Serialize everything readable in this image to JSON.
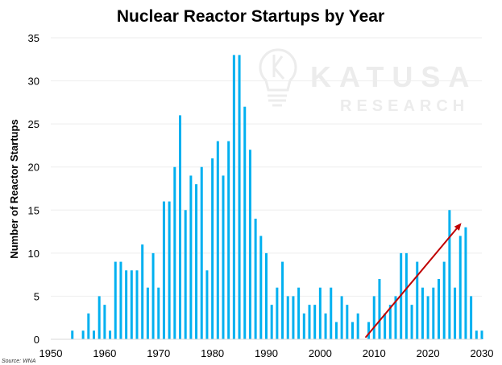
{
  "chart_data": {
    "type": "bar",
    "title": "Nuclear Reactor Startups by Year",
    "xlabel": "",
    "ylabel": "Number of Reactor Startups",
    "xlim": [
      1950,
      2030
    ],
    "ylim": [
      0,
      35
    ],
    "xticks": [
      1950,
      1960,
      1970,
      1980,
      1990,
      2000,
      2010,
      2020,
      2030
    ],
    "yticks": [
      0,
      5,
      10,
      15,
      20,
      25,
      30,
      35
    ],
    "grid": "horizontal",
    "bar_color": "#00B0F0",
    "x": [
      1954,
      1956,
      1957,
      1958,
      1959,
      1960,
      1961,
      1962,
      1963,
      1964,
      1965,
      1966,
      1967,
      1968,
      1969,
      1970,
      1971,
      1972,
      1973,
      1974,
      1975,
      1976,
      1977,
      1978,
      1979,
      1980,
      1981,
      1982,
      1983,
      1984,
      1985,
      1986,
      1987,
      1988,
      1989,
      1990,
      1991,
      1992,
      1993,
      1994,
      1995,
      1996,
      1997,
      1998,
      1999,
      2000,
      2001,
      2002,
      2003,
      2004,
      2005,
      2006,
      2007,
      2009,
      2010,
      2011,
      2012,
      2013,
      2014,
      2015,
      2016,
      2017,
      2018,
      2019,
      2020,
      2021,
      2022,
      2023,
      2024,
      2025,
      2026,
      2027,
      2028,
      2029,
      2030
    ],
    "values": [
      1,
      1,
      3,
      1,
      5,
      4,
      1,
      9,
      9,
      8,
      8,
      8,
      11,
      6,
      10,
      6,
      16,
      16,
      20,
      26,
      15,
      19,
      18,
      20,
      8,
      21,
      23,
      19,
      23,
      33,
      33,
      27,
      22,
      14,
      12,
      10,
      4,
      6,
      9,
      5,
      5,
      6,
      3,
      4,
      4,
      6,
      3,
      6,
      2,
      5,
      4,
      2,
      3,
      2,
      5,
      7,
      3,
      4,
      5,
      10,
      10,
      4,
      9,
      6,
      5,
      6,
      7,
      9,
      15,
      6,
      12,
      13,
      5,
      1,
      1
    ],
    "annotations": [
      {
        "type": "arrow",
        "color": "#C00000",
        "from": [
          2008.4,
          0.2
        ],
        "to": [
          2026.2,
          13.5
        ]
      }
    ],
    "source": "Source: WNA",
    "watermark": {
      "line1": "KATUSA",
      "line2": "RESEARCH"
    }
  }
}
